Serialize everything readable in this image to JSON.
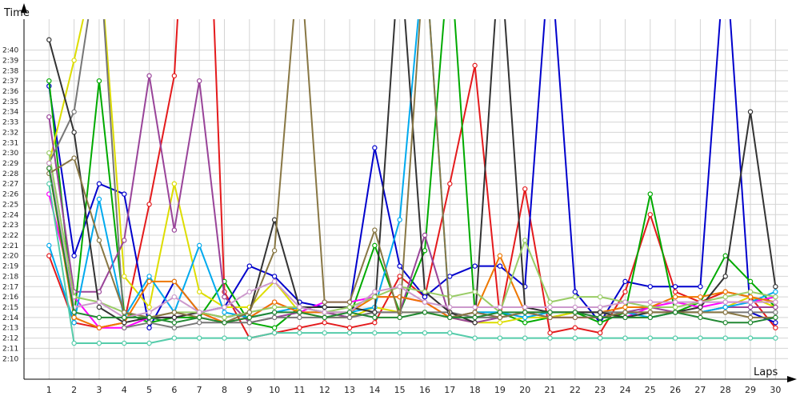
{
  "chart_data": {
    "type": "line",
    "ylabel": "Time",
    "xlabel": "Laps",
    "x": [
      1,
      2,
      3,
      4,
      5,
      6,
      7,
      8,
      9,
      10,
      11,
      12,
      13,
      14,
      15,
      16,
      17,
      18,
      19,
      20,
      21,
      22,
      23,
      24,
      25,
      26,
      27,
      28,
      29,
      30
    ],
    "xlim": [
      0,
      30.5
    ],
    "ylim_seconds": [
      128,
      163
    ],
    "ytick_labels": [
      "2:10",
      "2:11",
      "2:12",
      "2:13",
      "2:14",
      "2:15",
      "2:16",
      "2:17",
      "2:18",
      "2:19",
      "2:20",
      "2:21",
      "2:22",
      "2:23",
      "2:24",
      "2:25",
      "2:26",
      "2:27",
      "2:28",
      "2:29",
      "2:30",
      "2:31",
      "2:32",
      "2:33",
      "2:34",
      "2:35",
      "2:36",
      "2:37",
      "2:38",
      "2:39",
      "2:40"
    ],
    "ytick_seconds": [
      130,
      131,
      132,
      133,
      134,
      135,
      136,
      137,
      138,
      139,
      140,
      141,
      142,
      143,
      144,
      145,
      146,
      147,
      148,
      149,
      150,
      151,
      152,
      153,
      154,
      155,
      156,
      157,
      158,
      159,
      160
    ],
    "grid": true,
    "series": [
      {
        "color": "#e41a1c",
        "values": [
          140.0,
          133.5,
          133.0,
          133.5,
          145.0,
          157.5,
          200,
          136.5,
          132.0,
          132.5,
          133.0,
          133.5,
          133.0,
          133.5,
          138.0,
          136.0,
          147.0,
          158.5,
          134.0,
          146.5,
          132.5,
          133.0,
          132.5,
          136.5,
          144.0,
          136.5,
          135.5,
          136.5,
          136.0,
          133.0
        ]
      },
      {
        "color": "#0000cc",
        "values": [
          156.5,
          140.0,
          147.0,
          146.0,
          133.0,
          137.5,
          134.5,
          135.0,
          139.0,
          138.0,
          135.5,
          135.0,
          135.0,
          150.5,
          139.0,
          136.0,
          138.0,
          139.0,
          139.0,
          137.0,
          170,
          136.5,
          133.5,
          137.5,
          137.0,
          137.0,
          137.0,
          170,
          134.5,
          133.5
        ]
      },
      {
        "color": "#00aa00",
        "values": [
          157.0,
          134.0,
          157.0,
          134.5,
          133.5,
          134.0,
          134.0,
          137.5,
          133.5,
          133.0,
          135.0,
          134.5,
          134.0,
          141.0,
          134.5,
          140.5,
          170,
          134.5,
          134.5,
          133.5,
          134.0,
          134.5,
          133.5,
          134.5,
          146.0,
          134.5,
          135.5,
          140.0,
          137.5,
          135.0
        ]
      },
      {
        "color": "#dddd00",
        "values": [
          149.0,
          159.0,
          170,
          138.0,
          135.0,
          147.0,
          136.5,
          135.0,
          135.0,
          137.5,
          134.5,
          134.0,
          134.0,
          135.0,
          134.5,
          134.5,
          134.0,
          133.5,
          133.5,
          134.0,
          134.0,
          134.5,
          134.5,
          134.0,
          134.0,
          134.5,
          134.5,
          135.0,
          136.0,
          135.0
        ]
      },
      {
        "color": "#994499",
        "values": [
          153.5,
          136.5,
          136.5,
          141.5,
          157.5,
          142.5,
          157.0,
          136.0,
          133.5,
          134.0,
          134.5,
          134.5,
          134.0,
          134.5,
          134.5,
          142.0,
          134.0,
          133.5,
          134.0,
          134.5,
          134.0,
          134.0,
          134.0,
          134.5,
          135.0,
          134.5,
          134.5,
          135.0,
          135.0,
          135.0
        ]
      },
      {
        "color": "#ff00ff",
        "values": [
          146.0,
          136.0,
          133.0,
          133.0,
          134.0,
          134.0,
          134.5,
          133.5,
          134.0,
          135.5,
          134.5,
          135.5,
          135.5,
          136.0,
          136.0,
          135.5,
          134.0,
          134.5,
          134.0,
          134.5,
          134.0,
          134.0,
          134.0,
          134.0,
          135.0,
          135.5,
          135.0,
          135.5,
          135.5,
          136.0
        ]
      },
      {
        "color": "#00aaee",
        "values": [
          141.0,
          133.5,
          145.5,
          134.0,
          138.0,
          134.5,
          141.0,
          134.5,
          134.0,
          134.5,
          135.0,
          134.5,
          134.5,
          135.0,
          143.5,
          170,
          134.0,
          134.5,
          134.5,
          134.0,
          134.5,
          134.5,
          134.5,
          134.5,
          134.0,
          134.5,
          134.5,
          135.0,
          135.5,
          136.5
        ]
      },
      {
        "color": "#ee7700",
        "values": [
          148.5,
          134.0,
          133.0,
          133.5,
          137.5,
          137.5,
          134.5,
          133.5,
          134.0,
          135.5,
          134.5,
          134.5,
          134.5,
          136.0,
          136.0,
          135.5,
          134.0,
          134.5,
          140.0,
          134.5,
          134.5,
          134.5,
          134.5,
          135.0,
          135.0,
          136.0,
          136.0,
          136.5,
          136.0,
          135.5
        ]
      },
      {
        "color": "#777777",
        "values": [
          149.0,
          154.0,
          170,
          133.0,
          133.5,
          133.0,
          133.5,
          133.5,
          133.5,
          134.0,
          134.0,
          134.0,
          134.0,
          134.5,
          134.5,
          134.5,
          134.5,
          134.0,
          134.0,
          134.5,
          134.5,
          134.5,
          134.5,
          134.5,
          134.5,
          134.5,
          134.5,
          134.5,
          134.5,
          134.5
        ]
      },
      {
        "color": "#333333",
        "values": [
          161.0,
          152.0,
          135.0,
          133.5,
          134.0,
          134.0,
          134.5,
          134.0,
          134.5,
          143.5,
          135.0,
          135.0,
          135.0,
          134.5,
          170,
          136.5,
          134.5,
          133.5,
          170,
          135.0,
          134.5,
          134.5,
          134.5,
          134.0,
          134.5,
          134.5,
          135.0,
          138.0,
          154.0,
          137.0
        ]
      },
      {
        "color": "#99cc66",
        "values": [
          150.0,
          136.0,
          135.5,
          134.5,
          134.0,
          134.5,
          134.5,
          134.0,
          134.5,
          135.0,
          135.0,
          134.5,
          135.0,
          136.0,
          137.0,
          136.5,
          136.0,
          136.5,
          134.5,
          141.5,
          135.5,
          136.0,
          136.0,
          135.5,
          135.0,
          135.0,
          135.5,
          136.0,
          136.5,
          136.0
        ]
      },
      {
        "color": "#887744",
        "values": [
          148.0,
          149.5,
          141.5,
          134.5,
          134.0,
          134.5,
          134.0,
          133.5,
          134.5,
          140.5,
          170,
          135.5,
          135.5,
          142.5,
          134.0,
          170,
          134.0,
          134.5,
          134.0,
          134.5,
          134.0,
          134.0,
          134.0,
          134.5,
          134.5,
          134.5,
          134.5,
          134.5,
          134.0,
          134.0
        ]
      },
      {
        "color": "#cc99cc",
        "values": [
          149.0,
          135.0,
          135.5,
          134.0,
          134.5,
          136.0,
          134.5,
          135.0,
          136.5,
          137.5,
          135.0,
          134.5,
          134.5,
          136.5,
          137.0,
          135.5,
          135.0,
          135.0,
          135.0,
          135.0,
          135.0,
          135.0,
          135.0,
          135.5,
          135.5,
          135.5,
          135.5,
          135.5,
          135.5,
          135.5
        ]
      },
      {
        "color": "#228833",
        "values": [
          148.5,
          134.5,
          134.0,
          134.0,
          134.0,
          133.5,
          134.0,
          133.5,
          134.0,
          134.5,
          134.5,
          134.0,
          134.5,
          134.0,
          134.0,
          134.5,
          134.0,
          134.0,
          134.5,
          134.5,
          134.5,
          134.5,
          134.0,
          134.0,
          134.0,
          134.5,
          134.0,
          133.5,
          133.5,
          134.0
        ]
      },
      {
        "color": "#55ccaa",
        "values": [
          147.0,
          131.5,
          131.5,
          131.5,
          131.5,
          132.0,
          132.0,
          132.0,
          132.0,
          132.5,
          132.5,
          132.5,
          132.5,
          132.5,
          132.5,
          132.5,
          132.5,
          132.0,
          132.0,
          132.0,
          132.0,
          132.0,
          132.0,
          132.0,
          132.0,
          132.0,
          132.0,
          132.0,
          132.0,
          132.0
        ]
      }
    ]
  }
}
